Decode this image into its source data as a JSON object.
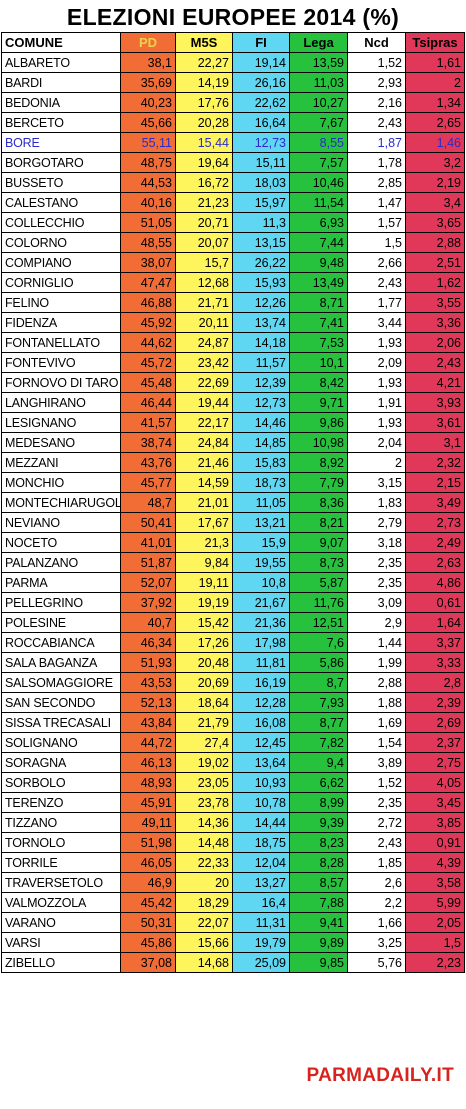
{
  "title": "ELEZIONI EUROPEE 2014 (%)",
  "columns": [
    "COMUNE",
    "PD",
    "M5S",
    "FI",
    "Lega",
    "Ncd",
    "Tsipras"
  ],
  "colors": {
    "pd": "#f26c35",
    "m5s": "#fdf55b",
    "fi": "#5fd6f2",
    "lega": "#26c23d",
    "ncd": "#ffffff",
    "tsipras": "#e1385a",
    "highlight_text": "#2b2bc9",
    "watermark": "#d8241e"
  },
  "highlighted_row": "BORE",
  "rows": [
    [
      "ALBARETO",
      "38,1",
      "22,27",
      "19,14",
      "13,59",
      "1,52",
      "1,61"
    ],
    [
      "BARDI",
      "35,69",
      "14,19",
      "26,16",
      "11,03",
      "2,93",
      "2"
    ],
    [
      "BEDONIA",
      "40,23",
      "17,76",
      "22,62",
      "10,27",
      "2,16",
      "1,34"
    ],
    [
      "BERCETO",
      "45,66",
      "20,28",
      "16,64",
      "7,67",
      "2,43",
      "2,65"
    ],
    [
      "BORE",
      "55,11",
      "15,44",
      "12,73",
      "8,55",
      "1,87",
      "1,46"
    ],
    [
      "BORGOTARO",
      "48,75",
      "19,64",
      "15,11",
      "7,57",
      "1,78",
      "3,2"
    ],
    [
      "BUSSETO",
      "44,53",
      "16,72",
      "18,03",
      "10,46",
      "2,85",
      "2,19"
    ],
    [
      "CALESTANO",
      "40,16",
      "21,23",
      "15,97",
      "11,54",
      "1,47",
      "3,4"
    ],
    [
      "COLLECCHIO",
      "51,05",
      "20,71",
      "11,3",
      "6,93",
      "1,57",
      "3,65"
    ],
    [
      "COLORNO",
      "48,55",
      "20,07",
      "13,15",
      "7,44",
      "1,5",
      "2,88"
    ],
    [
      "COMPIANO",
      "38,07",
      "15,7",
      "26,22",
      "9,48",
      "2,66",
      "2,51"
    ],
    [
      "CORNIGLIO",
      "47,47",
      "12,68",
      "15,93",
      "13,49",
      "2,43",
      "1,62"
    ],
    [
      "FELINO",
      "46,88",
      "21,71",
      "12,26",
      "8,71",
      "1,77",
      "3,55"
    ],
    [
      "FIDENZA",
      "45,92",
      "20,11",
      "13,74",
      "7,41",
      "3,44",
      "3,36"
    ],
    [
      "FONTANELLATO",
      "44,62",
      "24,87",
      "14,18",
      "7,53",
      "1,93",
      "2,06"
    ],
    [
      "FONTEVIVO",
      "45,72",
      "23,42",
      "11,57",
      "10,1",
      "2,09",
      "2,43"
    ],
    [
      "FORNOVO DI TARO",
      "45,48",
      "22,69",
      "12,39",
      "8,42",
      "1,93",
      "4,21"
    ],
    [
      "LANGHIRANO",
      "46,44",
      "19,44",
      "12,73",
      "9,71",
      "1,91",
      "3,93"
    ],
    [
      "LESIGNANO",
      "41,57",
      "22,17",
      "14,46",
      "9,86",
      "1,93",
      "3,61"
    ],
    [
      "MEDESANO",
      "38,74",
      "24,84",
      "14,85",
      "10,98",
      "2,04",
      "3,1"
    ],
    [
      "MEZZANI",
      "43,76",
      "21,46",
      "15,83",
      "8,92",
      "2",
      "2,32"
    ],
    [
      "MONCHIO",
      "45,77",
      "14,59",
      "18,73",
      "7,79",
      "3,15",
      "2,15"
    ],
    [
      "MONTECHIARUGOLO",
      "48,7",
      "21,01",
      "11,05",
      "8,36",
      "1,83",
      "3,49"
    ],
    [
      "NEVIANO",
      "50,41",
      "17,67",
      "13,21",
      "8,21",
      "2,79",
      "2,73"
    ],
    [
      "NOCETO",
      "41,01",
      "21,3",
      "15,9",
      "9,07",
      "3,18",
      "2,49"
    ],
    [
      "PALANZANO",
      "51,87",
      "9,84",
      "19,55",
      "8,73",
      "2,35",
      "2,63"
    ],
    [
      "PARMA",
      "52,07",
      "19,11",
      "10,8",
      "5,87",
      "2,35",
      "4,86"
    ],
    [
      "PELLEGRINO",
      "37,92",
      "19,19",
      "21,67",
      "11,76",
      "3,09",
      "0,61"
    ],
    [
      "POLESINE",
      "40,7",
      "15,42",
      "21,36",
      "12,51",
      "2,9",
      "1,64"
    ],
    [
      "ROCCABIANCA",
      "46,34",
      "17,26",
      "17,98",
      "7,6",
      "1,44",
      "3,37"
    ],
    [
      "SALA BAGANZA",
      "51,93",
      "20,48",
      "11,81",
      "5,86",
      "1,99",
      "3,33"
    ],
    [
      "SALSOMAGGIORE",
      "43,53",
      "20,69",
      "16,19",
      "8,7",
      "2,88",
      "2,8"
    ],
    [
      "SAN SECONDO",
      "52,13",
      "18,64",
      "12,28",
      "7,93",
      "1,88",
      "2,39"
    ],
    [
      "SISSA TRECASALI",
      "43,84",
      "21,79",
      "16,08",
      "8,77",
      "1,69",
      "2,69"
    ],
    [
      "SOLIGNANO",
      "44,72",
      "27,4",
      "12,45",
      "7,82",
      "1,54",
      "2,37"
    ],
    [
      "SORAGNA",
      "46,13",
      "19,02",
      "13,64",
      "9,4",
      "3,89",
      "2,75"
    ],
    [
      "SORBOLO",
      "48,93",
      "23,05",
      "10,93",
      "6,62",
      "1,52",
      "4,05"
    ],
    [
      "TERENZO",
      "45,91",
      "23,78",
      "10,78",
      "8,99",
      "2,35",
      "3,45"
    ],
    [
      "TIZZANO",
      "49,11",
      "14,36",
      "14,44",
      "9,39",
      "2,72",
      "3,85"
    ],
    [
      "TORNOLO",
      "51,98",
      "14,48",
      "18,75",
      "8,23",
      "2,43",
      "0,91"
    ],
    [
      "TORRILE",
      "46,05",
      "22,33",
      "12,04",
      "8,28",
      "1,85",
      "4,39"
    ],
    [
      "TRAVERSETOLO",
      "46,9",
      "20",
      "13,27",
      "8,57",
      "2,6",
      "3,58"
    ],
    [
      "VALMOZZOLA",
      "45,42",
      "18,29",
      "16,4",
      "7,88",
      "2,2",
      "5,99"
    ],
    [
      "VARANO",
      "50,31",
      "22,07",
      "11,31",
      "9,41",
      "1,66",
      "2,05"
    ],
    [
      "VARSI",
      "45,86",
      "15,66",
      "19,79",
      "9,89",
      "3,25",
      "1,5"
    ],
    [
      "ZIBELLO",
      "37,08",
      "14,68",
      "25,09",
      "9,85",
      "5,76",
      "2,23"
    ]
  ],
  "watermark": "PARMADAILY.IT"
}
